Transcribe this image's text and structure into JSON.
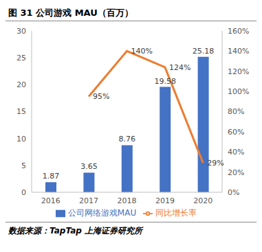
{
  "chart_data": {
    "type": "bar",
    "title": "图 31 公司游戏 MAU（百万）",
    "source": "数据来源：TapTap  上海证券研究所",
    "categories": [
      "2016",
      "2017",
      "2018",
      "2019",
      "2020"
    ],
    "ylim": [
      0,
      30
    ],
    "yticks": [
      0,
      5,
      10,
      15,
      20,
      25,
      30
    ],
    "y2lim": [
      0,
      160
    ],
    "y2ticks": [
      {
        "value": 0,
        "label": "0%"
      },
      {
        "value": 20,
        "label": "20%"
      },
      {
        "value": 40,
        "label": "40%"
      },
      {
        "value": 60,
        "label": "60%"
      },
      {
        "value": 80,
        "label": "80%"
      },
      {
        "value": 100,
        "label": "100%"
      },
      {
        "value": 120,
        "label": "120%"
      },
      {
        "value": 140,
        "label": "140%"
      },
      {
        "value": 160,
        "label": "160%"
      }
    ],
    "grid": false,
    "legend": "bottom",
    "data_labels": true,
    "series": [
      {
        "name": "公司网络游戏MAU",
        "type": "bar",
        "color": "#4472c4",
        "values": [
          1.87,
          3.65,
          8.76,
          19.58,
          25.18
        ]
      },
      {
        "name": "同比增长率",
        "type": "line",
        "color": "#ed7d31",
        "axis": "y2",
        "values": [
          null,
          95,
          140,
          124,
          29
        ],
        "value_labels": [
          null,
          "95%",
          "140%",
          "124%",
          "29%"
        ]
      }
    ]
  }
}
